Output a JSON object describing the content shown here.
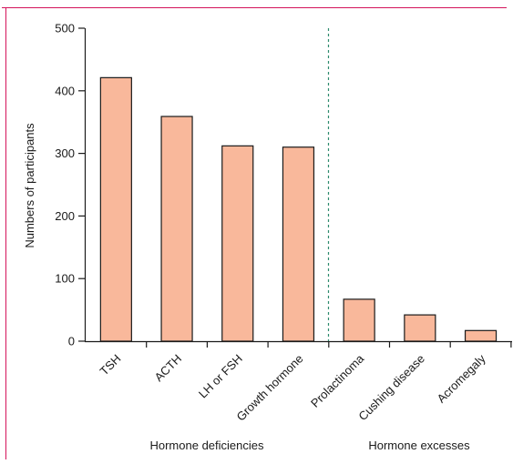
{
  "chart_data": {
    "type": "bar",
    "categories": [
      "TSH",
      "ACTH",
      "LH or FSH",
      "Growth hormone",
      "Prolactinoma",
      "Cushing disease",
      "Acromegaly"
    ],
    "values": [
      421,
      359,
      312,
      310,
      67,
      42,
      17
    ],
    "ylabel": "Numbers of participants",
    "xlabel": "",
    "ylim": [
      0,
      500
    ],
    "yticks": [
      0,
      100,
      200,
      300,
      400,
      500
    ],
    "groups": [
      {
        "label": "Hormone deficiencies",
        "categories": [
          "TSH",
          "ACTH",
          "LH or FSH",
          "Growth hormone"
        ]
      },
      {
        "label": "Hormone excesses",
        "categories": [
          "Prolactinoma",
          "Cushing disease",
          "Acromegaly"
        ]
      }
    ],
    "grid": false,
    "colors": {
      "bar_fill": "#f9b89b",
      "bar_stroke": "#1a1a1a",
      "frame": "#d4145a",
      "divider": "#2e8b6e"
    }
  }
}
